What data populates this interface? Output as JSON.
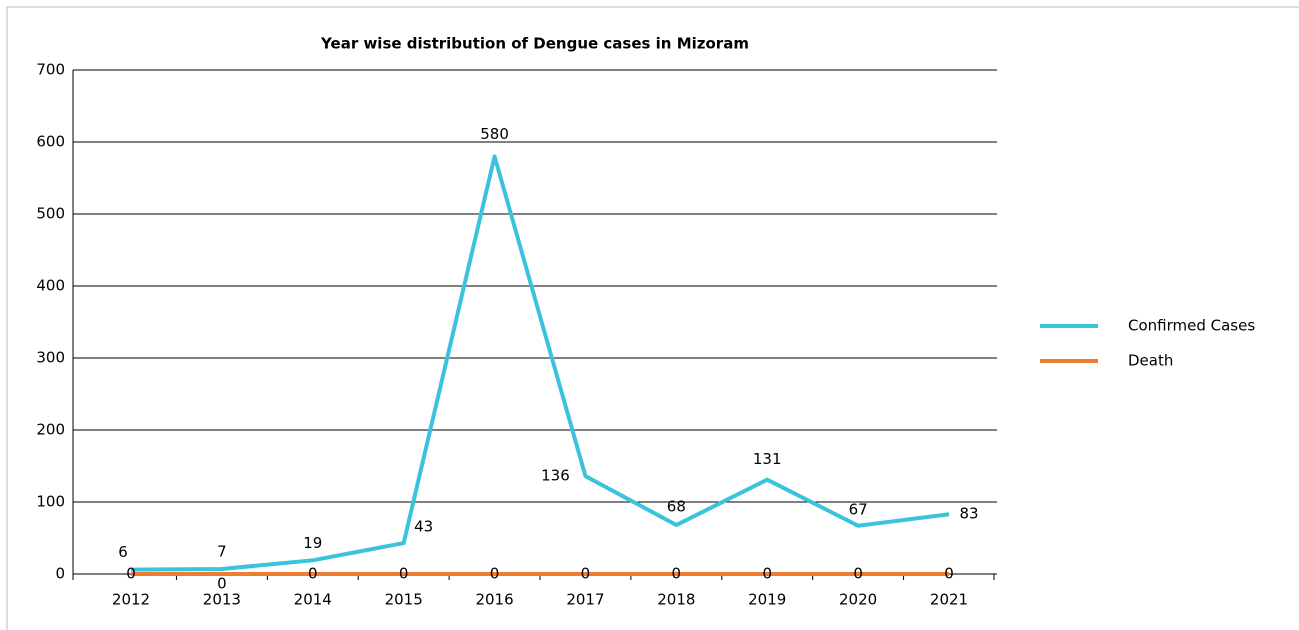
{
  "chart_data": {
    "type": "line",
    "title": "Year wise distribution of Dengue cases in Mizoram",
    "categories": [
      "2012",
      "2013",
      "2014",
      "2015",
      "2016",
      "2017",
      "2018",
      "2019",
      "2020",
      "2021"
    ],
    "series": [
      {
        "name": "Confirmed Cases",
        "color": "#3bc3dc",
        "values": [
          6,
          7,
          19,
          43,
          580,
          136,
          68,
          131,
          67,
          83
        ]
      },
      {
        "name": "Death",
        "color": "#ed7d31",
        "values": [
          0,
          0,
          0,
          0,
          0,
          0,
          0,
          0,
          0,
          0
        ]
      }
    ],
    "ylim": [
      0,
      700
    ],
    "yticks": [
      0,
      100,
      200,
      300,
      400,
      500,
      600,
      700
    ],
    "grid": true,
    "legend": "right"
  }
}
